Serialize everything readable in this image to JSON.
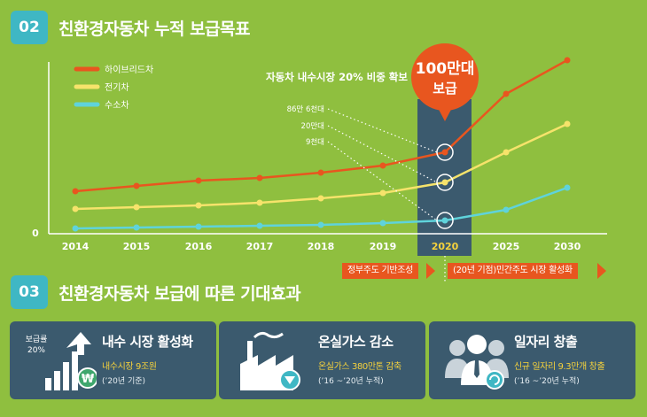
{
  "section1": {
    "number": "02",
    "title": "친환경자동차 누적 보급목표"
  },
  "section2": {
    "number": "03",
    "title": "친환경자동차 보급에 따른 기대효과"
  },
  "chart_data": {
    "type": "line",
    "categories": [
      "2014",
      "2015",
      "2016",
      "2017",
      "2018",
      "2019",
      "2020",
      "2025",
      "2030"
    ],
    "y_zero_label": "0",
    "series": [
      {
        "name": "하이브리드차",
        "color": "#e8561f",
        "values": [
          48,
          54,
          60,
          63,
          69,
          77,
          92,
          158,
          196
        ]
      },
      {
        "name": "전기차",
        "color": "#f6e36b",
        "values": [
          28,
          30,
          32,
          35,
          40,
          46,
          58,
          92,
          124
        ]
      },
      {
        "name": "수소차",
        "color": "#5fd3db",
        "values": [
          6,
          7,
          8,
          9,
          10,
          12,
          15,
          27,
          52
        ]
      }
    ],
    "legend_position": "top-left",
    "highlight_category": "2020",
    "highlight_color": "#3b5a6e",
    "annotation_text": "자동차 내수시장 20% 비중 확보",
    "bubble": {
      "line1": "100만대",
      "line2": "보급",
      "color": "#e8561f"
    },
    "callouts": [
      {
        "label": "86만 6천대",
        "series": "하이브리드차"
      },
      {
        "label": "20만대",
        "series": "전기차"
      },
      {
        "label": "9천대",
        "series": "수소차"
      }
    ]
  },
  "timeline": {
    "phase1": "정부주도 기반조성",
    "phase2": "(20년 기점)민간주도 시장 활성화"
  },
  "cards": [
    {
      "title": "내수 시장 활성화",
      "sub": "내수시장 9조원",
      "note": "(’20년 기준)",
      "rate_label_1": "보급률",
      "rate_label_2": "20%"
    },
    {
      "title": "온실가스 감소",
      "sub": "온실가스 380만톤 감축",
      "note": "(’16 ~’20년 누적)"
    },
    {
      "title": "일자리 창출",
      "sub": "신규 일자리 9.3만개 창출",
      "note": "(’16 ~’20년 누적)"
    }
  ]
}
